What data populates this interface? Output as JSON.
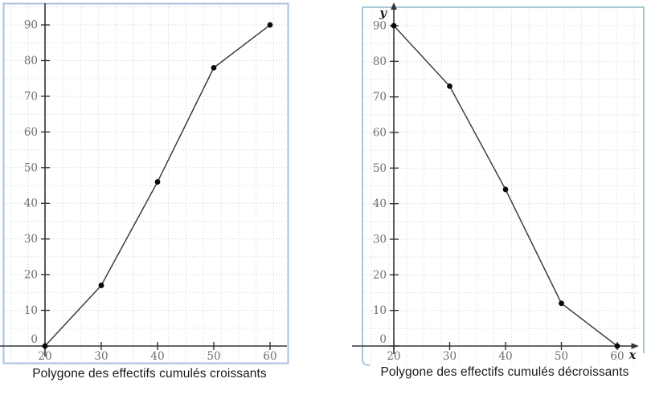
{
  "page": {
    "background": "#ffffff"
  },
  "chart_data": [
    {
      "type": "line",
      "title": "Polygone des effectifs cumulés croissants",
      "x": [
        20,
        30,
        40,
        50,
        60
      ],
      "y": [
        0,
        17,
        46,
        78,
        90
      ],
      "x_ticks": [
        20,
        30,
        40,
        50,
        60
      ],
      "y_ticks": [
        0,
        10,
        20,
        30,
        40,
        50,
        60,
        70,
        80,
        90
      ],
      "xlim": [
        20,
        63
      ],
      "ylim": [
        0,
        94
      ],
      "grid": "dotted",
      "legend": "none",
      "axis_arrows": false,
      "axis_letter_x": "",
      "axis_letter_y": "",
      "border_color": "#a9c2e0",
      "grid_color": "#c6d0db",
      "axis_color": "#333333",
      "line_color": "#3d3d3d",
      "point_color": "#0a0a0a",
      "tick_label_color": "#6e6e6e"
    },
    {
      "type": "line",
      "title": "Polygone des effectifs cumulés décroissants",
      "x": [
        20,
        30,
        40,
        50,
        60
      ],
      "y": [
        90,
        73,
        44,
        12,
        0
      ],
      "x_ticks": [
        20,
        30,
        40,
        50,
        60
      ],
      "y_ticks": [
        0,
        10,
        20,
        30,
        40,
        50,
        60,
        70,
        80,
        90
      ],
      "xlim": [
        20,
        63
      ],
      "ylim": [
        0,
        94
      ],
      "grid": "dotted",
      "legend": "none",
      "axis_arrows": true,
      "axis_letter_x": "x",
      "axis_letter_y": "y",
      "border_color": "#a9c9d9",
      "grid_color": "#c6d0db",
      "axis_color": "#333333",
      "line_color": "#3d3d3d",
      "point_color": "#0a0a0a",
      "tick_label_color": "#6e6e6e"
    }
  ]
}
